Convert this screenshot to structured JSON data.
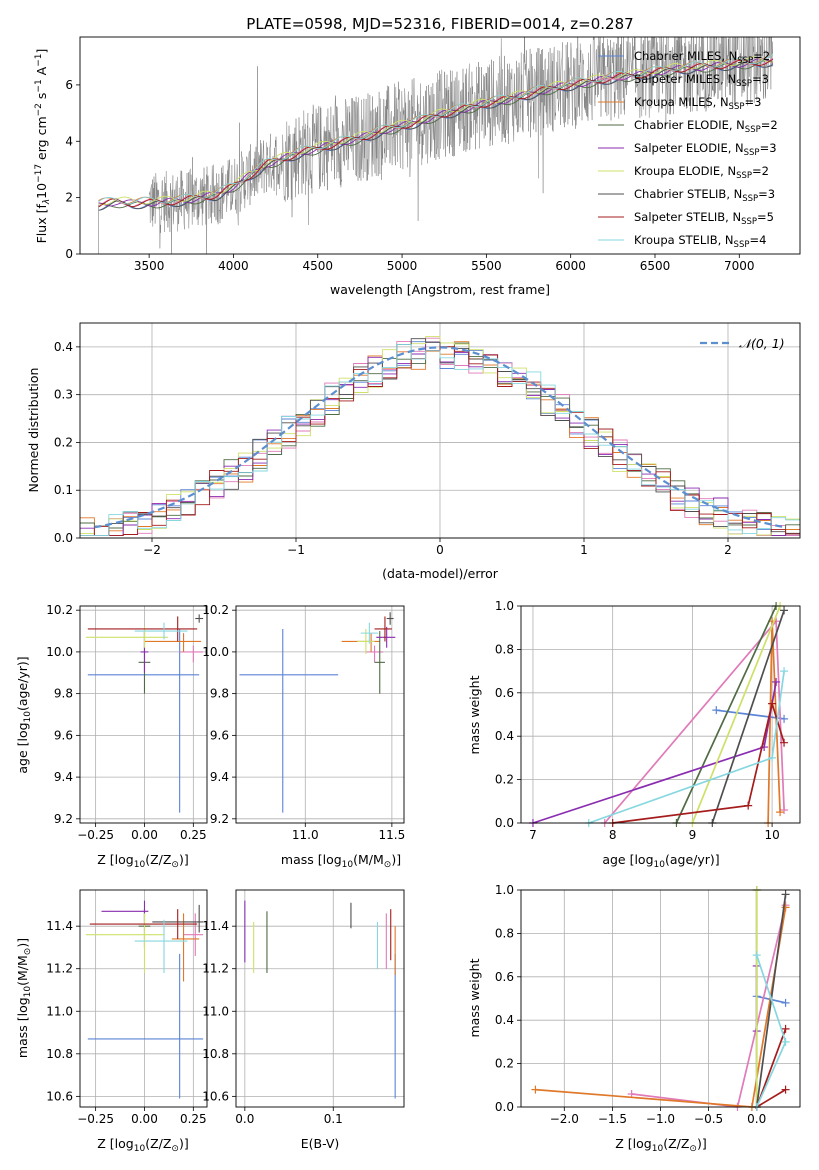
{
  "figure_title": "PLATE=0598, MJD=52316, FIBERID=0014, z=0.287",
  "colors": {
    "Chabrier MILES": "#5b84d6",
    "Salpeter MILES": "#e07ab8",
    "Kroupa MILES": "#e0782a",
    "Chabrier ELODIE": "#4f6b44",
    "Salpeter ELODIE": "#8a2db0",
    "Kroupa ELODIE": "#cfe06a",
    "Chabrier STELIB": "#4f4f4f",
    "Salpeter STELIB": "#a51c1c",
    "Kroupa STELIB": "#86d7e0",
    "data": "#808080",
    "gaussian": "#5b8fd0"
  },
  "chart_data": [
    {
      "id": "spectrum",
      "type": "line",
      "title": "PLATE=0598, MJD=52316, FIBERID=0014, z=0.287",
      "xlabel": "wavelength [Angstrom, rest frame]",
      "ylabel": "Flux [f$_\\lambda$10$^{-17}$ erg cm$^{-2}$ s$^{-1}$ A$^{-1}$]",
      "ylabel_parts": [
        "Flux [f",
        "λ",
        "10",
        "−17",
        " erg cm",
        "−2",
        " s",
        "−1",
        " A",
        "−1",
        "]"
      ],
      "xlim": [
        3090,
        7360
      ],
      "ylim": [
        0,
        7.7
      ],
      "xticks": [
        3500,
        4000,
        4500,
        5000,
        5500,
        6000,
        6500,
        7000
      ],
      "yticks": [
        0,
        2,
        4,
        6
      ],
      "legend_position": "top-right",
      "series": [
        {
          "name": "Chabrier MILES, N$_{SSP}$=2",
          "legend": [
            "Chabrier MILES, N",
            "SSP",
            "=2"
          ],
          "model": "Chabrier MILES"
        },
        {
          "name": "Salpeter MILES, N$_{SSP}$=3",
          "legend": [
            "Salpeter MILES, N",
            "SSP",
            "=3"
          ],
          "model": "Salpeter MILES"
        },
        {
          "name": "Kroupa MILES, N$_{SSP}$=3",
          "legend": [
            "Kroupa MILES, N",
            "SSP",
            "=3"
          ],
          "model": "Kroupa MILES"
        },
        {
          "name": "Chabrier ELODIE, N$_{SSP}$=2",
          "legend": [
            "Chabrier ELODIE, N",
            "SSP",
            "=2"
          ],
          "model": "Chabrier ELODIE"
        },
        {
          "name": "Salpeter ELODIE, N$_{SSP}$=3",
          "legend": [
            "Salpeter ELODIE, N",
            "SSP",
            "=3"
          ],
          "model": "Salpeter ELODIE"
        },
        {
          "name": "Kroupa ELODIE, N$_{SSP}$=2",
          "legend": [
            "Kroupa ELODIE, N",
            "SSP",
            "=2"
          ],
          "model": "Kroupa ELODIE"
        },
        {
          "name": "Chabrier STELIB, N$_{SSP}$=3",
          "legend": [
            "Chabrier STELIB, N",
            "SSP",
            "=3"
          ],
          "model": "Chabrier STELIB"
        },
        {
          "name": "Salpeter STELIB, N$_{SSP}$=5",
          "legend": [
            "Salpeter STELIB, N",
            "SSP",
            "=5"
          ],
          "model": "Salpeter STELIB"
        },
        {
          "name": "Kroupa STELIB, N$_{SSP}$=4",
          "legend": [
            "Kroupa STELIB, N",
            "SSP",
            "=4"
          ],
          "model": "Kroupa STELIB"
        }
      ],
      "model_continuum": {
        "x": [
          3200,
          3300,
          3400,
          3500,
          3600,
          3700,
          3800,
          3900,
          4000,
          4100,
          4200,
          4300,
          4400,
          4500,
          4600,
          4700,
          4800,
          4900,
          5000,
          5100,
          5200,
          5300,
          5400,
          5500,
          5600,
          5700,
          5800,
          5900,
          6000,
          6100,
          6200,
          6300,
          6400,
          6500,
          6600,
          6700,
          6800,
          6900,
          7000,
          7100,
          7200
        ],
        "y": [
          1.75,
          1.85,
          1.8,
          1.82,
          1.85,
          1.9,
          2.0,
          2.1,
          2.4,
          2.8,
          3.2,
          3.4,
          3.6,
          3.75,
          3.9,
          4.05,
          4.2,
          4.4,
          4.55,
          4.7,
          4.9,
          5.05,
          5.2,
          5.35,
          5.45,
          5.6,
          5.75,
          5.9,
          6.0,
          6.1,
          6.2,
          6.3,
          6.35,
          6.45,
          6.55,
          6.6,
          6.65,
          6.7,
          6.75,
          6.8,
          6.85
        ]
      },
      "observed_range": [
        3500,
        7200
      ]
    },
    {
      "id": "residuals",
      "type": "histogram",
      "xlabel": "(data-model)/error",
      "ylabel": "Normed distribution",
      "xlim": [
        -2.5,
        2.5
      ],
      "ylim": [
        0,
        0.45
      ],
      "xticks": [
        -2,
        -1,
        0,
        1,
        2
      ],
      "yticks": [
        0.0,
        0.1,
        0.2,
        0.3,
        0.4
      ],
      "legend_position": "top-right",
      "gaussian_label": "𝒩(0, 1)",
      "bin_width": 0.1,
      "bin_start": -2.5,
      "series_models": [
        "Chabrier MILES",
        "Salpeter MILES",
        "Kroupa MILES",
        "Chabrier ELODIE",
        "Salpeter ELODIE",
        "Kroupa ELODIE",
        "Chabrier STELIB",
        "Salpeter STELIB",
        "Kroupa STELIB"
      ]
    },
    {
      "id": "age_vs_Z",
      "type": "errorbar",
      "xlabel": "Z [log$_{10}$(Z/Z$_\\odot$)]",
      "ylabel": "age [log$_{10}$(age/yr)]",
      "xlim": [
        -0.33,
        0.32
      ],
      "ylim": [
        9.18,
        10.22
      ],
      "xticks": [
        -0.25,
        0.0,
        0.25
      ],
      "xticklabels": [
        "−0.25",
        "0.00",
        "0.25"
      ],
      "yticks": [
        9.2,
        9.4,
        9.6,
        9.8,
        10.0,
        10.2
      ],
      "points": [
        {
          "model": "Chabrier MILES",
          "x": 0.18,
          "xerr": [
            0.47,
            0.1
          ],
          "y": 9.89,
          "yerr": [
            0.66,
            0.22
          ]
        },
        {
          "model": "Salpeter MILES",
          "x": 0.25,
          "xerr": [
            0.07,
            0.05
          ],
          "y": 10.0,
          "yerr": [
            0.05,
            0.03
          ]
        },
        {
          "model": "Kroupa MILES",
          "x": 0.2,
          "xerr": [
            0.2,
            0.09
          ],
          "y": 10.05,
          "yerr": [
            0.05,
            0.04
          ]
        },
        {
          "model": "Chabrier ELODIE",
          "x": 0.0,
          "xerr": [
            0.03,
            0.03
          ],
          "y": 9.95,
          "yerr": [
            0.15,
            0.15
          ]
        },
        {
          "model": "Salpeter ELODIE",
          "x": 0.0,
          "xerr": [
            0.02,
            0.02
          ],
          "y": 10.0,
          "yerr": [
            0.1,
            0.1
          ]
        },
        {
          "model": "Kroupa ELODIE",
          "x": 0.0,
          "xerr": [
            0.3,
            0.12
          ],
          "y": 10.07,
          "yerr": [
            0.05,
            0.05
          ]
        },
        {
          "model": "Chabrier STELIB",
          "x": 0.28,
          "xerr": [
            0.02,
            0.02
          ],
          "y": 10.16,
          "yerr": [
            0.02,
            0.02
          ]
        },
        {
          "model": "Salpeter STELIB",
          "x": 0.17,
          "xerr": [
            0.46,
            0.1
          ],
          "y": 10.11,
          "yerr": [
            0.06,
            0.06
          ]
        },
        {
          "model": "Kroupa STELIB",
          "x": 0.1,
          "xerr": [
            0.15,
            0.12
          ],
          "y": 10.1,
          "yerr": [
            0.04,
            0.04
          ]
        }
      ]
    },
    {
      "id": "age_vs_mass",
      "type": "errorbar",
      "xlabel": "mass [log$_{10}$(M/M$_\\odot$)]",
      "ylabel": "",
      "xlim": [
        10.6,
        11.57
      ],
      "ylim": [
        9.18,
        10.22
      ],
      "xticks": [
        11.0,
        11.5
      ],
      "yticks": [
        9.2,
        9.4,
        9.6,
        9.8,
        10.0,
        10.2
      ],
      "points": [
        {
          "model": "Chabrier MILES",
          "x": 10.87,
          "xerr": [
            0.25,
            0.32
          ],
          "y": 9.89,
          "yerr": [
            0.66,
            0.22
          ]
        },
        {
          "model": "Salpeter MILES",
          "x": 11.4,
          "xerr": [
            0.05,
            0.05
          ],
          "y": 10.0,
          "yerr": [
            0.05,
            0.03
          ]
        },
        {
          "model": "Kroupa MILES",
          "x": 11.38,
          "xerr": [
            0.17,
            0.05
          ],
          "y": 10.05,
          "yerr": [
            0.05,
            0.04
          ]
        },
        {
          "model": "Chabrier ELODIE",
          "x": 11.43,
          "xerr": [
            0.03,
            0.03
          ],
          "y": 9.95,
          "yerr": [
            0.15,
            0.15
          ]
        },
        {
          "model": "Salpeter ELODIE",
          "x": 11.47,
          "xerr": [
            0.06,
            0.05
          ],
          "y": 10.07,
          "yerr": [
            0.05,
            0.05
          ]
        },
        {
          "model": "Kroupa ELODIE",
          "x": 11.35,
          "xerr": [
            0.05,
            0.05
          ],
          "y": 10.05,
          "yerr": [
            0.06,
            0.06
          ]
        },
        {
          "model": "Chabrier STELIB",
          "x": 11.49,
          "xerr": [
            0.02,
            0.02
          ],
          "y": 10.16,
          "yerr": [
            0.03,
            0.03
          ]
        },
        {
          "model": "Salpeter STELIB",
          "x": 11.46,
          "xerr": [
            0.06,
            0.04
          ],
          "y": 10.11,
          "yerr": [
            0.06,
            0.06
          ]
        },
        {
          "model": "Kroupa STELIB",
          "x": 11.37,
          "xerr": [
            0.05,
            0.05
          ],
          "y": 10.09,
          "yerr": [
            0.05,
            0.05
          ]
        }
      ]
    },
    {
      "id": "mass_weight_vs_age",
      "type": "line",
      "xlabel": "age [log$_{10}$(age/yr)]",
      "ylabel": "mass weight",
      "xlim": [
        6.85,
        10.35
      ],
      "ylim": [
        0,
        1.0
      ],
      "xticks": [
        7,
        8,
        9,
        10
      ],
      "yticks": [
        0.0,
        0.2,
        0.4,
        0.6,
        0.8,
        1.0
      ],
      "series": [
        {
          "model": "Chabrier MILES",
          "x": [
            9.3,
            10.15
          ],
          "y": [
            0.52,
            0.48
          ]
        },
        {
          "model": "Salpeter MILES",
          "x": [
            7.9,
            10.05,
            10.15
          ],
          "y": [
            0.0,
            0.93,
            0.06
          ]
        },
        {
          "model": "Kroupa MILES",
          "x": [
            9.95,
            10.0,
            10.1
          ],
          "y": [
            0.0,
            0.93,
            0.05
          ]
        },
        {
          "model": "Chabrier ELODIE",
          "x": [
            8.8,
            10.05
          ],
          "y": [
            0.0,
            1.0
          ]
        },
        {
          "model": "Salpeter ELODIE",
          "x": [
            7.0,
            9.9,
            10.05
          ],
          "y": [
            0.0,
            0.35,
            0.65
          ]
        },
        {
          "model": "Kroupa ELODIE",
          "x": [
            9.0,
            10.1
          ],
          "y": [
            0.0,
            1.0
          ]
        },
        {
          "model": "Chabrier STELIB",
          "x": [
            9.25,
            10.15
          ],
          "y": [
            0.0,
            0.98
          ]
        },
        {
          "model": "Salpeter STELIB",
          "x": [
            8.0,
            9.7,
            10.0,
            10.15
          ],
          "y": [
            0.0,
            0.08,
            0.55,
            0.37
          ]
        },
        {
          "model": "Kroupa STELIB",
          "x": [
            7.7,
            10.0,
            10.15
          ],
          "y": [
            0.0,
            0.3,
            0.7
          ]
        }
      ]
    },
    {
      "id": "mass_vs_Z",
      "type": "errorbar",
      "xlabel": "Z [log$_{10}$(Z/Z$_\\odot$)]",
      "ylabel": "mass [log$_{10}$(M/M$_\\odot$)]",
      "xlim": [
        -0.33,
        0.32
      ],
      "ylim": [
        10.55,
        11.57
      ],
      "xticks": [
        -0.25,
        0.0,
        0.25
      ],
      "xticklabels": [
        "−0.25",
        "0.00",
        "0.25"
      ],
      "yticks": [
        10.6,
        10.8,
        11.0,
        11.2,
        11.4
      ],
      "points": [
        {
          "model": "Chabrier MILES",
          "x": 0.18,
          "xerr": [
            0.47,
            0.12
          ],
          "y": 10.87,
          "yerr": [
            0.28,
            0.4
          ]
        },
        {
          "model": "Salpeter MILES",
          "x": 0.26,
          "xerr": [
            0.06,
            0.04
          ],
          "y": 11.36,
          "yerr": [
            0.1,
            0.1
          ]
        },
        {
          "model": "Kroupa MILES",
          "x": 0.2,
          "xerr": [
            0.06,
            0.08
          ],
          "y": 11.34,
          "yerr": [
            0.2,
            0.12
          ]
        },
        {
          "model": "Chabrier ELODIE",
          "x": 0.0,
          "xerr": [
            0.03,
            0.03
          ],
          "y": 11.4,
          "yerr": [
            0.1,
            0.08
          ]
        },
        {
          "model": "Salpeter ELODIE",
          "x": 0.0,
          "xerr": [
            0.22,
            0.02
          ],
          "y": 11.47,
          "yerr": [
            0.05,
            0.05
          ]
        },
        {
          "model": "Kroupa ELODIE",
          "x": 0.0,
          "xerr": [
            0.3,
            0.1
          ],
          "y": 11.36,
          "yerr": [
            0.18,
            0.1
          ]
        },
        {
          "model": "Chabrier STELIB",
          "x": 0.28,
          "xerr": [
            0.24,
            0.02
          ],
          "y": 11.42,
          "yerr": [
            0.05,
            0.08
          ]
        },
        {
          "model": "Salpeter STELIB",
          "x": 0.17,
          "xerr": [
            0.45,
            0.1
          ],
          "y": 11.41,
          "yerr": [
            0.07,
            0.07
          ]
        },
        {
          "model": "Kroupa STELIB",
          "x": 0.1,
          "xerr": [
            0.15,
            0.12
          ],
          "y": 11.33,
          "yerr": [
            0.15,
            0.1
          ]
        }
      ]
    },
    {
      "id": "mass_vs_ebv",
      "type": "errorbar",
      "xlabel": "E(B-V)",
      "ylabel": "",
      "xlim": [
        -0.01,
        0.18
      ],
      "ylim": [
        10.55,
        11.57
      ],
      "xticks": [
        0.0,
        0.1
      ],
      "xticklabels": [
        "0.0",
        "0.1"
      ],
      "yticks": [
        10.6,
        10.8,
        11.0,
        11.2,
        11.4
      ],
      "points": [
        {
          "model": "Chabrier MILES",
          "x": 0.17,
          "y": 10.87,
          "yerr": [
            0.28,
            0.4
          ]
        },
        {
          "model": "Salpeter MILES",
          "x": 0.16,
          "y": 11.36,
          "yerr": [
            0.16,
            0.1
          ]
        },
        {
          "model": "Kroupa MILES",
          "x": 0.17,
          "y": 11.32,
          "yerr": [
            0.15,
            0.08
          ]
        },
        {
          "model": "Chabrier ELODIE",
          "x": 0.025,
          "y": 11.3,
          "yerr": [
            0.12,
            0.17
          ]
        },
        {
          "model": "Salpeter ELODIE",
          "x": 0.0,
          "y": 11.35,
          "yerr": [
            0.12,
            0.17
          ]
        },
        {
          "model": "Kroupa ELODIE",
          "x": 0.01,
          "y": 11.3,
          "yerr": [
            0.12,
            0.12
          ]
        },
        {
          "model": "Chabrier STELIB",
          "x": 0.12,
          "y": 11.45,
          "yerr": [
            0.06,
            0.06
          ]
        },
        {
          "model": "Salpeter STELIB",
          "x": 0.165,
          "y": 11.36,
          "yerr": [
            0.12,
            0.12
          ]
        },
        {
          "model": "Kroupa STELIB",
          "x": 0.15,
          "y": 11.32,
          "yerr": [
            0.12,
            0.1
          ]
        }
      ]
    },
    {
      "id": "mass_weight_vs_Z",
      "type": "line",
      "xlabel": "Z [log$_{10}$(Z/Z$_\\odot$)]",
      "ylabel": "mass weight",
      "xlim": [
        -2.45,
        0.45
      ],
      "ylim": [
        0,
        1.0
      ],
      "xticks": [
        -2.0,
        -1.5,
        -1.0,
        -0.5,
        0.0
      ],
      "xticklabels": [
        "−2.0",
        "−1.5",
        "−1.0",
        "−0.5",
        "0.0"
      ],
      "yticks": [
        0.0,
        0.2,
        0.4,
        0.6,
        0.8,
        1.0
      ],
      "series": [
        {
          "model": "Chabrier MILES",
          "x": [
            0.0,
            0.3
          ],
          "y": [
            0.51,
            0.48
          ]
        },
        {
          "model": "Salpeter MILES",
          "x": [
            -1.3,
            -0.2,
            0.3
          ],
          "y": [
            0.06,
            0.0,
            0.93
          ]
        },
        {
          "model": "Kroupa MILES",
          "x": [
            -2.3,
            -0.05,
            0.3
          ],
          "y": [
            0.08,
            0.0,
            0.92
          ]
        },
        {
          "model": "Chabrier ELODIE",
          "x": [
            0.0,
            0.0
          ],
          "y": [
            0.0,
            1.0
          ]
        },
        {
          "model": "Salpeter ELODIE",
          "x": [
            0.0,
            0.0
          ],
          "y": [
            0.35,
            0.65
          ]
        },
        {
          "model": "Kroupa ELODIE",
          "x": [
            0.0,
            0.0
          ],
          "y": [
            0.0,
            1.0
          ]
        },
        {
          "model": "Chabrier STELIB",
          "x": [
            0.0,
            0.3
          ],
          "y": [
            0.0,
            0.98
          ]
        },
        {
          "model": "Salpeter STELIB",
          "x": [
            0.3,
            0.0,
            0.3
          ],
          "y": [
            0.08,
            0.0,
            0.36
          ]
        },
        {
          "model": "Kroupa STELIB",
          "x": [
            0.0,
            0.3,
            0.0
          ],
          "y": [
            0.7,
            0.3,
            0.0
          ]
        }
      ]
    }
  ]
}
